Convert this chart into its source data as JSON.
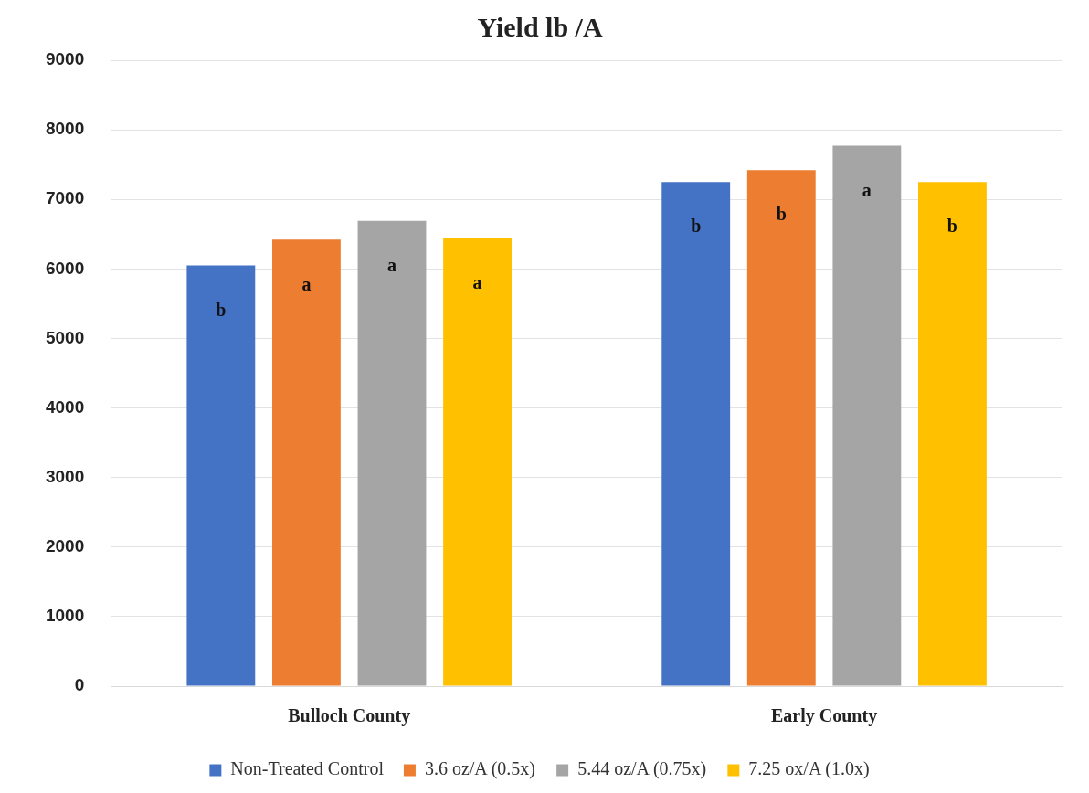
{
  "chart_data": {
    "type": "bar",
    "title": "Yield lb /A",
    "categories": [
      "Bulloch County",
      "Early County"
    ],
    "series": [
      {
        "name": "Non-Treated Control",
        "color": "#4472c4",
        "values": [
          6050,
          7250
        ],
        "value_labels": [
          "b",
          "b"
        ]
      },
      {
        "name": "3.6 oz/A (0.5x)",
        "color": "#ed7d31",
        "values": [
          6420,
          7420
        ],
        "value_labels": [
          "a",
          "b"
        ]
      },
      {
        "name": "5.44 oz/A (0.75x)",
        "color": "#a5a5a5",
        "values": [
          6690,
          7770
        ],
        "value_labels": [
          "a",
          "a"
        ]
      },
      {
        "name": "7.25 ox/A (1.0x)",
        "color": "#ffc000",
        "values": [
          6440,
          7250
        ],
        "value_labels": [
          "a",
          "b"
        ]
      }
    ],
    "ylim": [
      0,
      9000
    ],
    "yticks": [
      0,
      1000,
      2000,
      3000,
      4000,
      5000,
      6000,
      7000,
      8000,
      9000
    ],
    "grid": "y",
    "legend": "bottom"
  }
}
